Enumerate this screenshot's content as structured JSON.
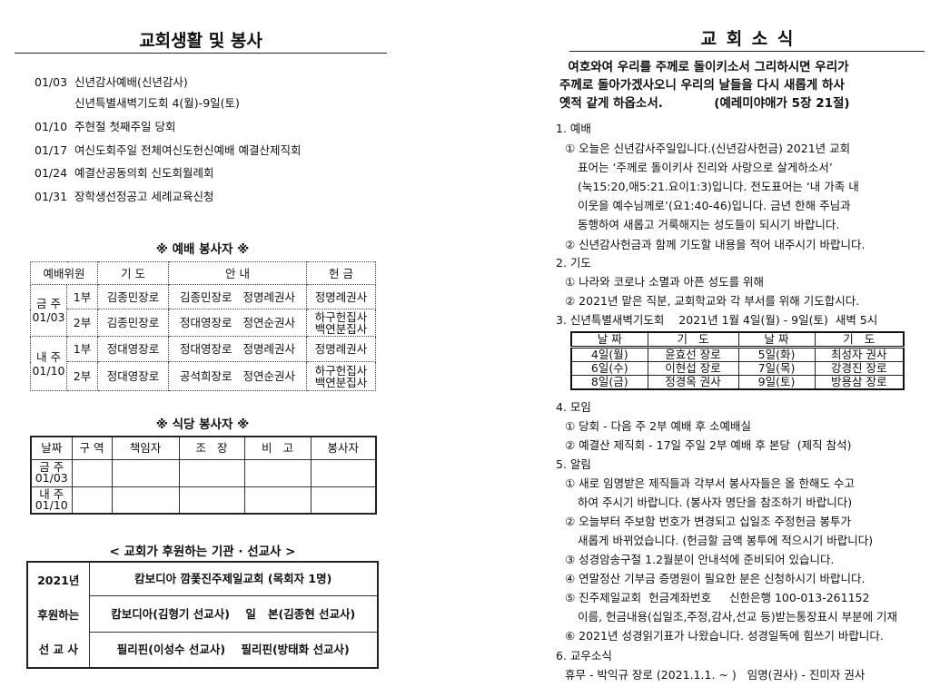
{
  "left": {
    "title": "교회생활 및 봉사",
    "schedule": [
      {
        "date": "01/03",
        "text": "신년감사예배(신년감사)"
      },
      {
        "date": "",
        "text": "신년특별새벽기도회   4(월)-9일(토)"
      },
      {
        "date": "01/10",
        "text": "주현절 첫째주일   당회"
      },
      {
        "date": "01/17",
        "text": "여신도회주일   전체여신도헌신예배   예결산제직회"
      },
      {
        "date": "01/24",
        "text": "예결산공동의회   신도회월례회"
      },
      {
        "date": "01/31",
        "text": "장학생선정공고   세례교육신청"
      }
    ],
    "worship": {
      "title": "※ 예배 봉사자 ※",
      "headers": [
        "예배위원",
        "기 도",
        "안 내",
        "헌 금"
      ],
      "weeks": [
        {
          "label": "금 주",
          "date": "01/03",
          "rows": [
            {
              "part": "1부",
              "prayer": "김종민장로",
              "guide": "김종민장로   정명례권사",
              "offering": [
                "정명례권사"
              ]
            },
            {
              "part": "2부",
              "prayer": "김종민장로",
              "guide": "정대영장로   정연순권사",
              "offering": [
                "하구헌집사",
                "백연분집사"
              ]
            }
          ]
        },
        {
          "label": "내 주",
          "date": "01/10",
          "rows": [
            {
              "part": "1부",
              "prayer": "정대영장로",
              "guide": "정대영장로   정명례권사",
              "offering": [
                "정명례권사"
              ]
            },
            {
              "part": "2부",
              "prayer": "정대영장로",
              "guide": "공석희장로   정연순권사",
              "offering": [
                "하구헌집사",
                "백연분집사"
              ]
            }
          ]
        }
      ]
    },
    "cafeteria": {
      "title": "※ 식당 봉사자 ※",
      "headers": [
        "날짜",
        "구 역",
        "책임자",
        "조   장",
        "비   고",
        "봉사자"
      ],
      "rows": [
        {
          "label": "금 주",
          "date": "01/03"
        },
        {
          "label": "내 주",
          "date": "01/10"
        }
      ]
    },
    "missions": {
      "title": "< 교회가 후원하는 기관 · 선교사 >",
      "side": [
        "2021년",
        "후원하는",
        "선 교 사"
      ],
      "rows": [
        "캄보디아 깜퐃진주제일교회 (목회자 1명)",
        "캄보디아(김형기 선교사)    일   본(김종현 선교사)",
        "필리핀(이성수 선교사)    필리핀(방태화 선교사)"
      ]
    }
  },
  "right": {
    "title": "교 회 소 식",
    "verse": [
      "  여호와여 우리를 주께로 돌이키소서 그리하시면 우리가",
      "주께로 돌아가겠사오니 우리의 날들을 다시 새롭게 하사",
      "옛적 같게 하옵소서.            (예레미야애가 5장 21절)"
    ],
    "sections": [
      {
        "heading": "1. 예배",
        "lines": [
          {
            "t": "① 오늘은 신년감사주일입니다.(신년감사헌금) 2021년 교회",
            "c": false
          },
          {
            "t": "표어는 ‘주께로 돌이키사 진리와 사랑으로 살게하소서’",
            "c": true
          },
          {
            "t": "(눅15:20,애5:21.요이1:3)입니다. 전도표어는 ‘내 가족 내",
            "c": true
          },
          {
            "t": "이웃을 예수님께로’(요1:40-46)입니다. 금년 한해 주님과",
            "c": true
          },
          {
            "t": "동행하여 새롭고 거룩해지는 성도들이 되시기 바랍니다.",
            "c": true
          },
          {
            "t": "② 신년감사헌금과 함께 기도할 내용을 적어 내주시기 바랍니다.",
            "c": false
          }
        ]
      },
      {
        "heading": "2. 기도",
        "lines": [
          {
            "t": "① 나라와 코로나 소멸과 아픈 성도를 위해",
            "c": false
          },
          {
            "t": "② 2021년 맡은 직분, 교회학교와 각 부서를 위해 기도합시다.",
            "c": false
          }
        ]
      },
      {
        "heading": "3. 신년특별새벽기도회    2021년 1월 4일(월) - 9일(토)  새벽 5시",
        "lines": []
      },
      {
        "heading": "4. 모임",
        "lines": [
          {
            "t": "① 당회 - 다음 주 2부 예배 후 소예배실",
            "c": false
          },
          {
            "t": "② 예결산 제직회 - 17일 주일 2부 예배 후 본당  (제직 참석)",
            "c": false
          }
        ]
      },
      {
        "heading": "5. 알림",
        "lines": [
          {
            "t": "① 새로 임명받은 제직들과 각부서 봉사자들은 올 한해도 수고",
            "c": false
          },
          {
            "t": "하여 주시기 바랍니다. (봉사자 명단을 참조하기 바랍니다)",
            "c": true
          },
          {
            "t": "② 오늘부터 주보함 번호가 변경되고 십일조 주정헌금 봉투가",
            "c": false
          },
          {
            "t": "새롭게 바뀌었습니다. (헌금할 금액 봉투에 적으시기 바랍니다)",
            "c": true
          },
          {
            "t": "③ 성경암송구절 1.2월분이 안내석에 준비되어 있습니다.",
            "c": false
          },
          {
            "t": "④ 연말정산 기부금 증명원이 필요한 분은 신청하시기 바랍니다.",
            "c": false
          },
          {
            "t": "⑤ 진주제일교회  헌금계좌번호     신한은행 100-013-261152",
            "c": false
          },
          {
            "t": "이름, 헌금내용(십일조,주정,감사,선교 등)받는통장표시 부분에 기재",
            "c": true
          },
          {
            "t": "⑥ 2021년 성경읽기표가 나왔습니다. 성경일독에 힘쓰기 바랍니다.",
            "c": false
          }
        ]
      },
      {
        "heading": "6. 교우소식",
        "lines": [
          {
            "t": "휴무 - 박익규 장로 (2021.1.1. ~ )   임명(권사) - 진미자 권사",
            "c": false
          }
        ]
      }
    ],
    "prayer_table": {
      "headers": [
        "날 짜",
        "기   도",
        "날 짜",
        "기   도"
      ],
      "rows": [
        [
          "4일(월)",
          "윤효선 장로",
          "5일(화)",
          "최성자 권사"
        ],
        [
          "6일(수)",
          "이현섭 장로",
          "7일(목)",
          "강경진 장로"
        ],
        [
          "8일(금)",
          "정경옥 권사",
          "9일(토)",
          "방용삼 장로"
        ]
      ]
    }
  }
}
